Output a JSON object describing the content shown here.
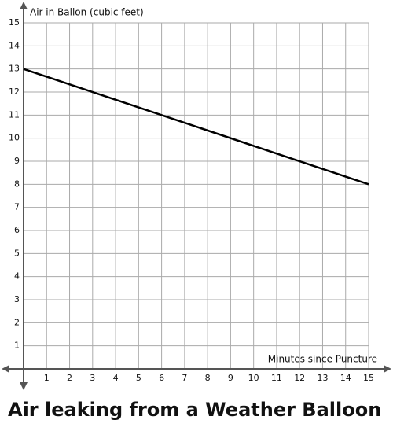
{
  "chart_data": {
    "type": "line",
    "title": "Air leaking from a Weather Balloon",
    "ylabel": "Air in Ballon (cubic feet)",
    "xlabel": "Minutes since Puncture",
    "x": [
      0,
      15
    ],
    "series": [
      {
        "name": "Air",
        "color": "#000000",
        "values": [
          13,
          8
        ]
      }
    ],
    "xlim": [
      0,
      15
    ],
    "ylim": [
      0,
      15
    ],
    "xticks": [
      1,
      2,
      3,
      4,
      5,
      6,
      7,
      8,
      9,
      10,
      11,
      12,
      13,
      14,
      15
    ],
    "yticks": [
      1,
      2,
      3,
      4,
      5,
      6,
      7,
      8,
      9,
      10,
      11,
      12,
      13,
      14,
      15
    ],
    "grid": true
  }
}
